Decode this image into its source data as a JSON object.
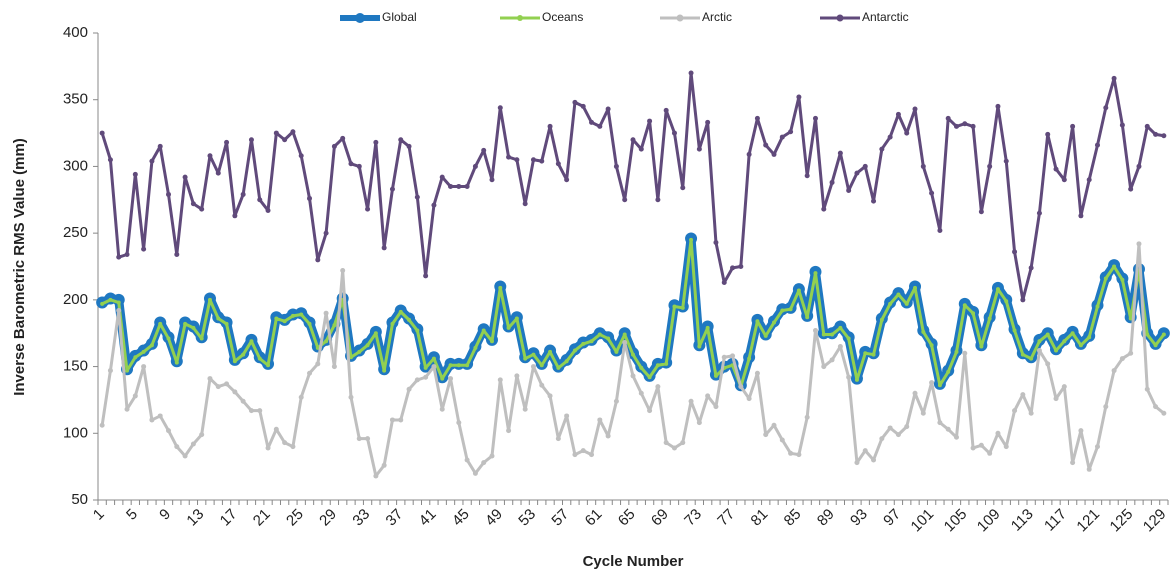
{
  "chart_data": {
    "type": "line",
    "x_label": "Cycle Number",
    "y_label": "Inverse Barometric RMS Value (mm)",
    "ylim": [
      50,
      400
    ],
    "yticks": [
      50,
      100,
      150,
      200,
      250,
      300,
      350,
      400
    ],
    "grid": false,
    "legend": "top",
    "categories": [
      "1",
      null,
      null,
      null,
      "5",
      null,
      null,
      null,
      "9",
      null,
      null,
      null,
      "13",
      null,
      null,
      null,
      "17",
      null,
      null,
      null,
      "21",
      null,
      null,
      null,
      "25",
      null,
      null,
      null,
      "29",
      null,
      null,
      null,
      "33",
      null,
      null,
      null,
      "37",
      null,
      null,
      null,
      "41",
      null,
      null,
      null,
      "45",
      null,
      null,
      null,
      "49",
      null,
      null,
      null,
      "53",
      null,
      null,
      null,
      "57",
      null,
      null,
      null,
      "61",
      null,
      null,
      null,
      "65",
      null,
      null,
      null,
      "69",
      null,
      null,
      null,
      "73",
      null,
      null,
      null,
      "77",
      null,
      null,
      null,
      "81",
      null,
      null,
      null,
      "85",
      null,
      null,
      null,
      "89",
      null,
      null,
      null,
      "93",
      null,
      null,
      null,
      "97",
      null,
      null,
      null,
      "101",
      null,
      null,
      null,
      "105",
      null,
      null,
      null,
      "109",
      null,
      null,
      null,
      "113",
      null,
      null,
      null,
      "117",
      null,
      null,
      null,
      "121",
      null,
      null,
      null,
      "125",
      null,
      null,
      null,
      "129"
    ],
    "series": [
      {
        "name": "Global",
        "color": "#1f78c1",
        "values": [
          198,
          201,
          200,
          148,
          158,
          162,
          167,
          183,
          172,
          154,
          183,
          180,
          172,
          201,
          187,
          183,
          155,
          160,
          170,
          157,
          152,
          187,
          185,
          189,
          190,
          183,
          165,
          170,
          182,
          201,
          158,
          162,
          167,
          176,
          148,
          183,
          192,
          186,
          178,
          150,
          157,
          142,
          152,
          152,
          152,
          165,
          178,
          170,
          210,
          180,
          187,
          157,
          160,
          152,
          162,
          150,
          155,
          163,
          168,
          170,
          175,
          172,
          162,
          175,
          160,
          150,
          143,
          152,
          153,
          196,
          195,
          246,
          166,
          180,
          144,
          150,
          152,
          136,
          157,
          185,
          174,
          184,
          193,
          194,
          208,
          188,
          221,
          175,
          175,
          180,
          172,
          141,
          161,
          160,
          186,
          198,
          205,
          198,
          210,
          177,
          167,
          137,
          147,
          162,
          197,
          191,
          166,
          187,
          209,
          200,
          178,
          160,
          157,
          170,
          175,
          163,
          170,
          176,
          167,
          173,
          196,
          217,
          226,
          216,
          187,
          223,
          175,
          167,
          175
        ]
      },
      {
        "name": "Oceans",
        "color": "#92d050",
        "values": [
          197,
          200,
          198,
          147,
          157,
          161,
          166,
          182,
          171,
          153,
          182,
          179,
          171,
          200,
          186,
          182,
          154,
          159,
          169,
          156,
          151,
          186,
          184,
          188,
          189,
          182,
          164,
          169,
          181,
          200,
          157,
          161,
          166,
          175,
          147,
          182,
          191,
          185,
          177,
          149,
          156,
          141,
          151,
          151,
          151,
          164,
          177,
          169,
          209,
          179,
          186,
          156,
          159,
          151,
          161,
          149,
          154,
          162,
          167,
          169,
          174,
          171,
          161,
          174,
          159,
          149,
          142,
          151,
          152,
          195,
          194,
          245,
          165,
          179,
          143,
          149,
          151,
          135,
          156,
          184,
          173,
          183,
          192,
          193,
          207,
          187,
          220,
          174,
          174,
          179,
          171,
          140,
          160,
          159,
          185,
          197,
          204,
          197,
          209,
          176,
          166,
          136,
          146,
          161,
          196,
          190,
          165,
          186,
          208,
          199,
          177,
          159,
          156,
          169,
          174,
          162,
          169,
          175,
          166,
          172,
          195,
          216,
          225,
          215,
          186,
          222,
          174,
          166,
          174
        ]
      },
      {
        "name": "Arctic",
        "color": "#bfbfbf",
        "values": [
          106,
          147,
          192,
          118,
          128,
          150,
          110,
          113,
          102,
          90,
          83,
          92,
          99,
          141,
          135,
          137,
          131,
          124,
          117,
          117,
          89,
          103,
          93,
          90,
          127,
          145,
          152,
          190,
          150,
          222,
          127,
          96,
          96,
          68,
          76,
          110,
          110,
          133,
          140,
          142,
          150,
          118,
          141,
          108,
          80,
          70,
          78,
          83,
          140,
          102,
          143,
          118,
          150,
          136,
          128,
          96,
          113,
          84,
          87,
          84,
          110,
          98,
          124,
          168,
          143,
          130,
          117,
          135,
          93,
          89,
          93,
          124,
          108,
          128,
          120,
          157,
          158,
          135,
          126,
          145,
          99,
          106,
          95,
          85,
          84,
          112,
          177,
          150,
          155,
          165,
          142,
          78,
          87,
          80,
          96,
          104,
          99,
          105,
          130,
          115,
          138,
          108,
          103,
          97,
          160,
          89,
          91,
          85,
          100,
          90,
          117,
          129,
          115,
          162,
          152,
          126,
          135,
          78,
          102,
          73,
          90,
          120,
          147,
          156,
          160,
          242,
          133,
          120,
          115
        ]
      },
      {
        "name": "Antarctic",
        "color": "#604a7b",
        "values": [
          325,
          305,
          232,
          234,
          294,
          238,
          304,
          315,
          279,
          234,
          292,
          272,
          268,
          308,
          295,
          318,
          263,
          279,
          320,
          275,
          267,
          325,
          320,
          326,
          308,
          276,
          230,
          250,
          315,
          321,
          302,
          300,
          268,
          318,
          239,
          283,
          320,
          315,
          277,
          218,
          271,
          292,
          285,
          285,
          285,
          300,
          312,
          290,
          344,
          307,
          305,
          272,
          305,
          304,
          330,
          302,
          290,
          348,
          345,
          333,
          330,
          343,
          300,
          275,
          320,
          313,
          334,
          275,
          342,
          325,
          284,
          370,
          313,
          333,
          243,
          213,
          224,
          225,
          309,
          336,
          316,
          309,
          322,
          326,
          352,
          293,
          336,
          268,
          288,
          310,
          282,
          295,
          300,
          274,
          313,
          322,
          339,
          325,
          343,
          300,
          280,
          252,
          336,
          330,
          332,
          330,
          266,
          300,
          345,
          304,
          236,
          200,
          224,
          265,
          324,
          298,
          290,
          330,
          263,
          290,
          316,
          344,
          366,
          331,
          283,
          300,
          330,
          324,
          323
        ]
      }
    ]
  }
}
